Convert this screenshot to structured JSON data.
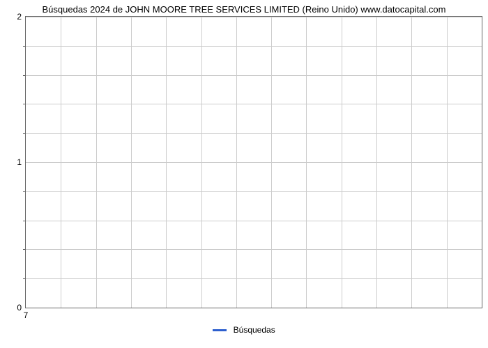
{
  "chart": {
    "type": "line",
    "title": "Búsquedas 2024 de JOHN MOORE TREE SERVICES LIMITED (Reino Unido) www.datocapital.com",
    "title_fontsize": 13,
    "title_color": "#000000",
    "background_color": "#ffffff",
    "plot_border_color": "#666666",
    "grid_color": "#cccccc",
    "y_axis": {
      "min": 0,
      "max": 2,
      "major_ticks": [
        0,
        1,
        2
      ],
      "minor_tick_count_between": 4,
      "gridlines_at_minor": true,
      "label_fontsize": 12,
      "label_color": "#000000"
    },
    "x_axis": {
      "ticks": [
        7
      ],
      "gridline_count": 13,
      "label_fontsize": 12,
      "label_color": "#000000"
    },
    "legend": {
      "label": "Búsquedas",
      "swatch_color": "#2d5fce",
      "position": "bottom-center",
      "fontsize": 12
    },
    "series": [
      {
        "name": "Búsquedas",
        "color": "#2d5fce",
        "line_width": 2,
        "data": []
      }
    ]
  }
}
